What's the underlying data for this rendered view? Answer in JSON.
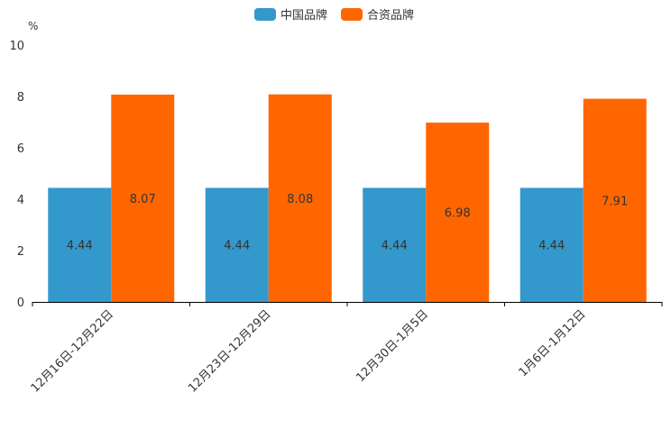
{
  "chart_data": {
    "type": "bar",
    "title": "",
    "ylabel": "%",
    "xlabel": "",
    "ylim": [
      0,
      10
    ],
    "yticks": [
      "0",
      "2",
      "4",
      "6",
      "8",
      "10"
    ],
    "categories": [
      "12月16日-12月22日",
      "12月23日-12月29日",
      "12月30日-1月5日",
      "1月6日-1月12日"
    ],
    "series": [
      {
        "name": "中国品牌",
        "color": "#3398cc",
        "values": [
          4.44,
          4.44,
          4.44,
          4.44
        ],
        "labels": [
          "4.44",
          "4.44",
          "4.44",
          "4.44"
        ]
      },
      {
        "name": "合资品牌",
        "color": "#ff6600",
        "values": [
          8.07,
          8.08,
          6.98,
          7.91
        ],
        "labels": [
          "8.07",
          "8.08",
          "6.98",
          "7.91"
        ]
      }
    ],
    "legend": "top-center",
    "grid": false
  }
}
